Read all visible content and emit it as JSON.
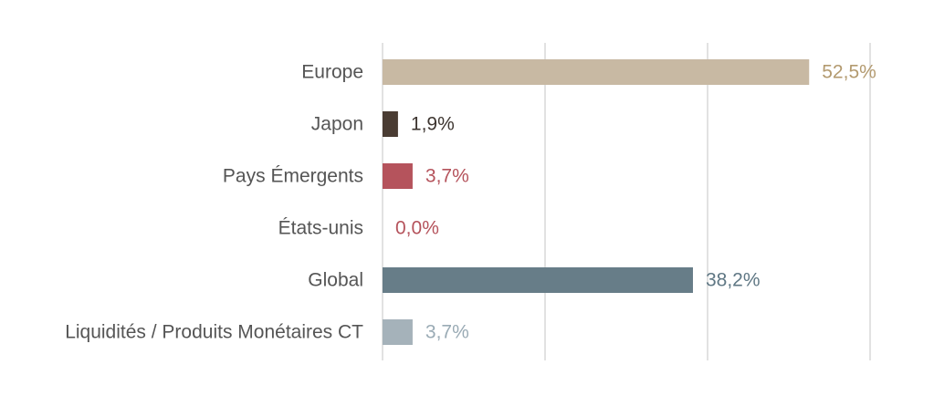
{
  "chart_data": {
    "type": "bar",
    "orientation": "horizontal",
    "categories": [
      "Europe",
      "Japon",
      "Pays Émergents",
      "États-unis",
      "Global",
      "Liquidités / Produits Monétaires CT"
    ],
    "values": [
      52.5,
      1.9,
      3.7,
      0.0,
      38.2,
      3.7
    ],
    "value_labels": [
      "52,5%",
      "1,9%",
      "3,7%",
      "0,0%",
      "38,2%",
      "3,7%"
    ],
    "bar_colors": [
      "#c8b9a3",
      "#4a3c33",
      "#b5535c",
      "#b5535c",
      "#677d88",
      "#a5b2ba"
    ],
    "label_colors": [
      "#b39a6f",
      "#3d3530",
      "#b5535c",
      "#b5535c",
      "#5f7784",
      "#9aabb5"
    ],
    "xlim": [
      0,
      60
    ],
    "gridlines": [
      0,
      20,
      40,
      60
    ],
    "grid": true,
    "legend": "none",
    "title": "",
    "xlabel": "",
    "ylabel": ""
  }
}
